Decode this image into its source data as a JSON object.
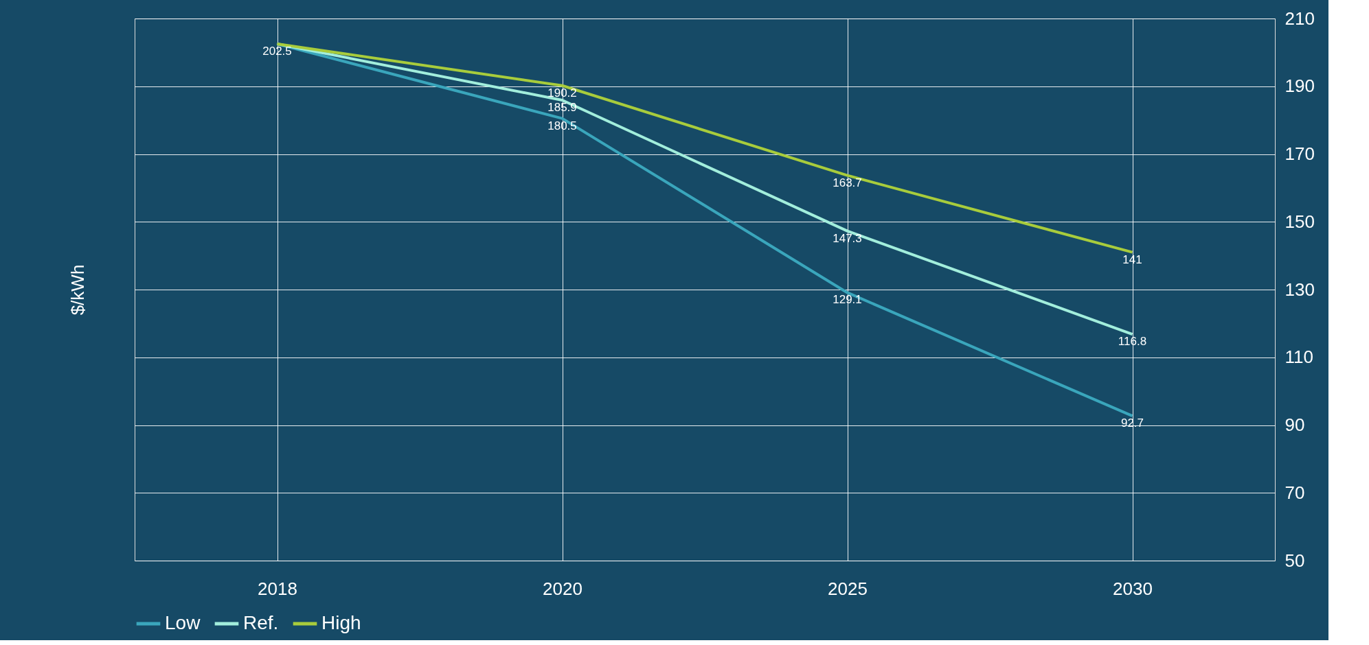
{
  "chart_data": {
    "type": "line",
    "ylabel": "$/kWh",
    "categories": [
      "2018",
      "2020",
      "2025",
      "2030"
    ],
    "series": [
      {
        "name": "Low",
        "color": "#3aa6bc",
        "values": [
          202.5,
          180.5,
          129.1,
          92.7
        ],
        "value_labels": [
          "202.5",
          "180.5",
          "129.1",
          "92.7"
        ]
      },
      {
        "name": "Ref.",
        "color": "#a2eedc",
        "values": [
          202.5,
          185.9,
          147.3,
          116.8
        ],
        "value_labels": [
          null,
          "185.9",
          "147.3",
          "116.8"
        ]
      },
      {
        "name": "High",
        "color": "#a8cc3c",
        "values": [
          202.5,
          190.2,
          163.7,
          141
        ],
        "value_labels": [
          null,
          "190.2",
          "163.7",
          "141"
        ]
      }
    ],
    "ylim": [
      50,
      210
    ],
    "yticks": [
      50,
      70,
      90,
      110,
      130,
      150,
      170,
      190,
      210
    ],
    "grid": true,
    "legend": "bottom",
    "marker": "none",
    "line_style": "solid"
  }
}
